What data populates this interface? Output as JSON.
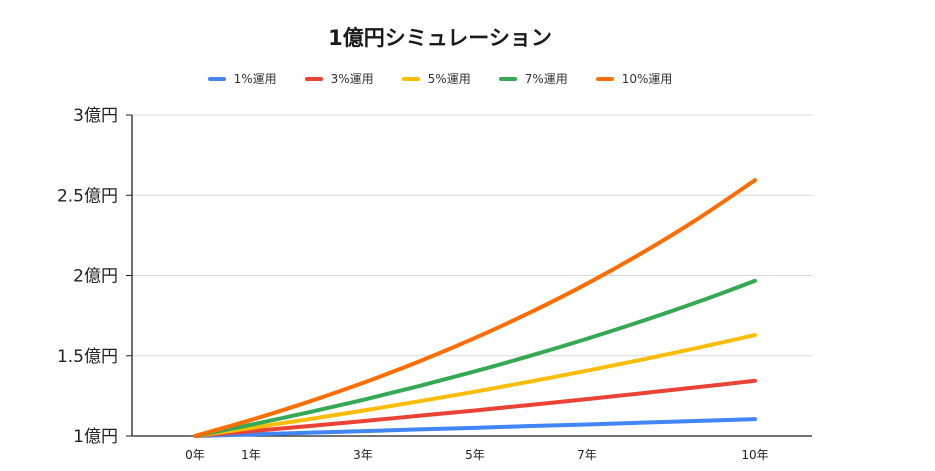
{
  "chart_data": {
    "type": "line",
    "title": "1億円シミュレーション",
    "xlabel": "",
    "ylabel": "",
    "x_ticks": [
      "0年",
      "1年",
      "3年",
      "5年",
      "7年",
      "10年"
    ],
    "y_ticks": [
      "1億円",
      "1.5億円",
      "2億円",
      "2.5億円",
      "3億円"
    ],
    "y_tick_values": [
      1.0,
      1.5,
      2.0,
      2.5,
      3.0
    ],
    "ylim": [
      1.0,
      3.0
    ],
    "grid": true,
    "legend_position": "top",
    "series": [
      {
        "name": "1%運用",
        "color": "#4285f4",
        "x": [
          0,
          1,
          2,
          3,
          4,
          5,
          6,
          7,
          8,
          9,
          10
        ],
        "values": [
          1.0,
          1.01,
          1.02,
          1.03,
          1.041,
          1.051,
          1.062,
          1.072,
          1.083,
          1.094,
          1.105
        ]
      },
      {
        "name": "3%運用",
        "color": "#ea4335",
        "x": [
          0,
          1,
          2,
          3,
          4,
          5,
          6,
          7,
          8,
          9,
          10
        ],
        "values": [
          1.0,
          1.03,
          1.061,
          1.093,
          1.126,
          1.159,
          1.194,
          1.23,
          1.267,
          1.305,
          1.344
        ]
      },
      {
        "name": "5%運用",
        "color": "#fbbc04",
        "x": [
          0,
          1,
          2,
          3,
          4,
          5,
          6,
          7,
          8,
          9,
          10
        ],
        "values": [
          1.0,
          1.05,
          1.103,
          1.158,
          1.216,
          1.276,
          1.34,
          1.407,
          1.477,
          1.551,
          1.629
        ]
      },
      {
        "name": "7%運用",
        "color": "#34a853",
        "x": [
          0,
          1,
          2,
          3,
          4,
          5,
          6,
          7,
          8,
          9,
          10
        ],
        "values": [
          1.0,
          1.07,
          1.145,
          1.225,
          1.311,
          1.403,
          1.501,
          1.606,
          1.718,
          1.838,
          1.967
        ]
      },
      {
        "name": "10%運用",
        "color": "#ff6d01",
        "x": [
          0,
          1,
          2,
          3,
          4,
          5,
          6,
          7,
          8,
          9,
          10
        ],
        "values": [
          1.0,
          1.1,
          1.21,
          1.331,
          1.464,
          1.611,
          1.772,
          1.949,
          2.144,
          2.358,
          2.594
        ]
      }
    ]
  }
}
